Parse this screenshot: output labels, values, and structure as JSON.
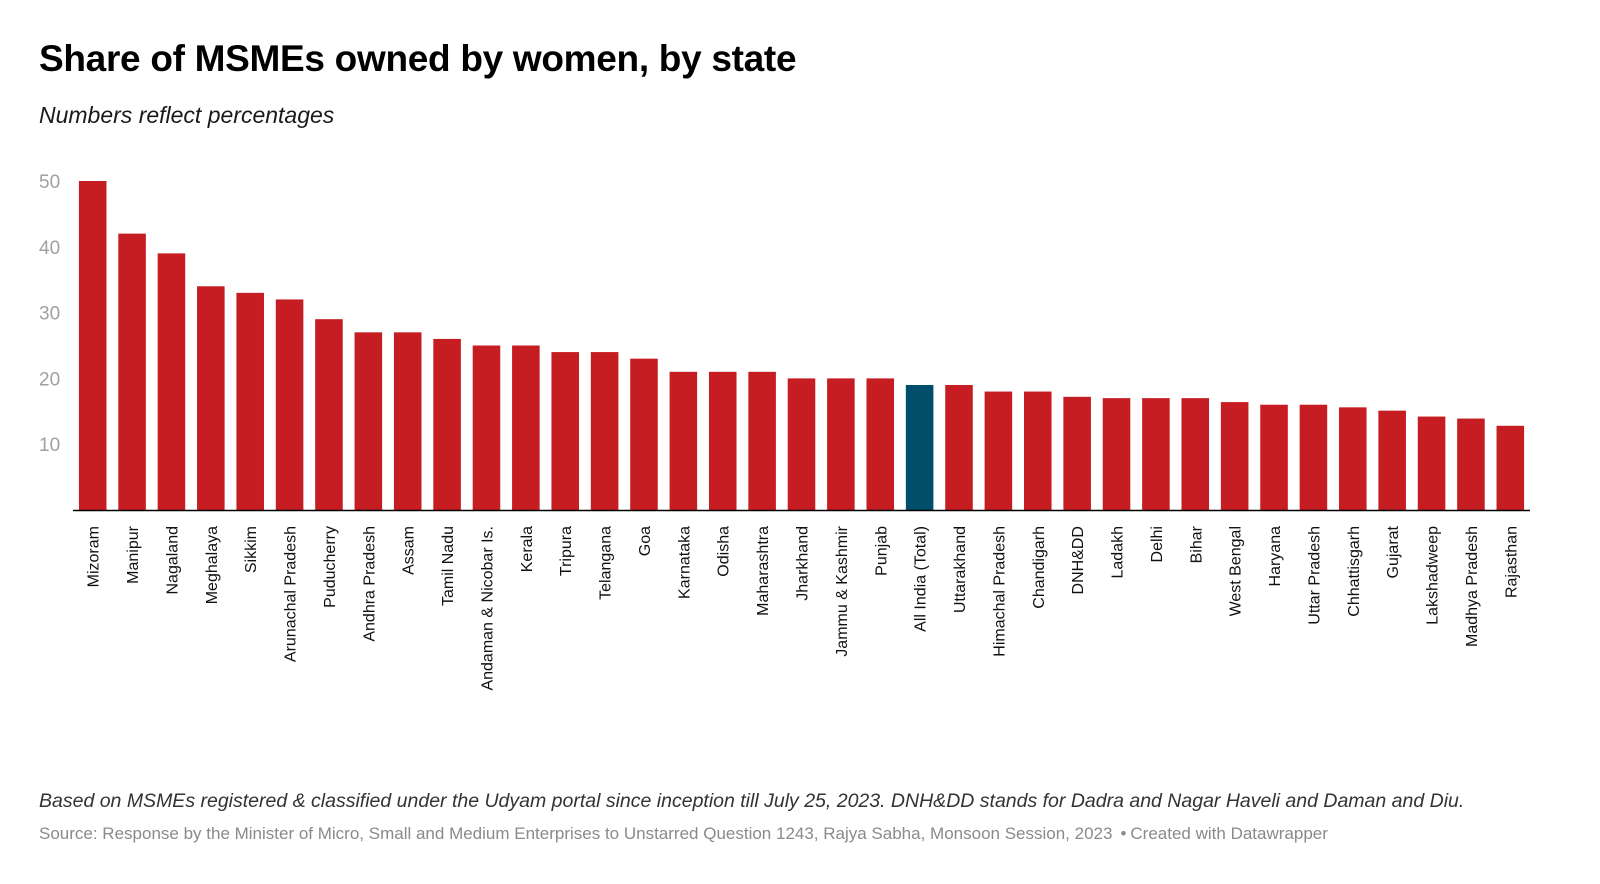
{
  "title": "Share of MSMEs owned by women, by state",
  "subtitle": "Numbers reflect percentages",
  "note": "Based on MSMEs registered & classified under the Udyam portal since inception till July 25, 2023. DNH&DD stands for Dadra and Nagar Haveli and Daman and Diu.",
  "source": "Source: Response by the Minister of Micro, Small and Medium Enterprises to Unstarred Question 1243, Rajya Sabha, Monsoon Session, 2023",
  "credit": "Created with Datawrapper",
  "colors": {
    "bar": "#c51d22",
    "highlight": "#004e6a",
    "tick_text": "#a0a0a0",
    "axis": "#000000"
  },
  "chart_data": {
    "type": "bar",
    "title": "Share of MSMEs owned by women, by state",
    "xlabel": "",
    "ylabel": "",
    "ylim": [
      0,
      50
    ],
    "yticks": [
      10,
      20,
      30,
      40,
      50
    ],
    "grid": false,
    "highlight": "All India (Total)",
    "categories": [
      "Mizoram",
      "Manipur",
      "Nagaland",
      "Meghalaya",
      "Sikkim",
      "Arunachal Pradesh",
      "Puducherry",
      "Andhra Pradesh",
      "Assam",
      "Tamil Nadu",
      "Andaman & Nicobar Is.",
      "Kerala",
      "Tripura",
      "Telangana",
      "Goa",
      "Karnataka",
      "Odisha",
      "Maharashtra",
      "Jharkhand",
      "Jammu & Kashmir",
      "Punjab",
      "All India (Total)",
      "Uttarakhand",
      "Himachal Pradesh",
      "Chandigarh",
      "DNH&DD",
      "Ladakh",
      "Delhi",
      "Bihar",
      "West Bengal",
      "Haryana",
      "Uttar Pradesh",
      "Chhattisgarh",
      "Gujarat",
      "Lakshadweep",
      "Madhya Pradesh",
      "Rajasthan"
    ],
    "values": [
      50,
      42,
      39,
      34,
      33,
      32,
      29,
      27,
      27,
      26,
      25,
      25,
      24,
      24,
      23,
      21,
      21,
      21,
      20,
      20,
      20,
      19,
      19,
      18,
      18,
      17.2,
      17,
      17,
      17,
      16.4,
      16,
      16,
      15.6,
      15.1,
      14.2,
      13.9,
      12.8
    ]
  }
}
